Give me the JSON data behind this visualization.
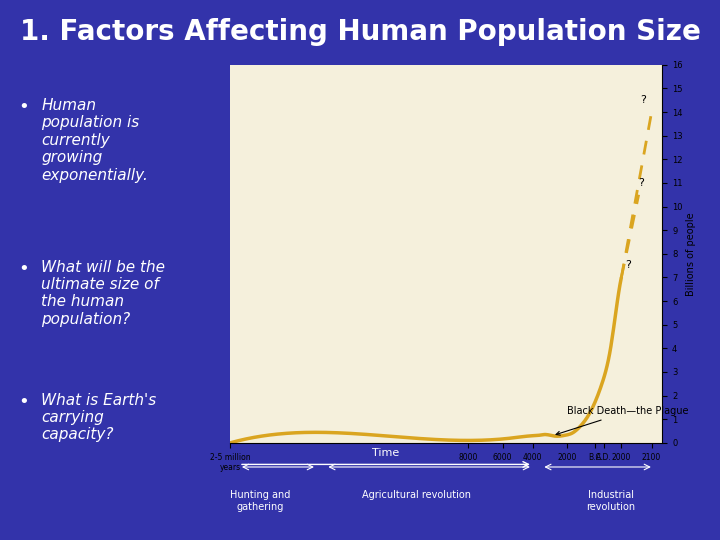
{
  "title": "1. Factors Affecting Human Population Size",
  "title_color": "#FFFFFF",
  "title_fontsize": 20,
  "bg_color": "#3333AA",
  "slide_bg": "#3333AA",
  "chart_bg": "#F5F0DC",
  "bullet_points": [
    "Human\npopulation is\ncurrently\ngrowing\nexponentially.",
    "What will be the\nultimate size of\nthe human\npopulation?",
    "What is Earth's\ncarrying\ncapacity?"
  ],
  "bullet_color": "#FFFFFF",
  "bullet_fontsize": 11,
  "chart_line_color": "#DAA520",
  "chart_dashed_color": "#DAA520",
  "y_labels": [
    "0",
    "1",
    "2",
    "3",
    "4",
    "5",
    "6",
    "7",
    "8",
    "9",
    "10",
    "11",
    "12",
    "13",
    "14",
    "15",
    "16"
  ],
  "y_axis_label": "Billions of people",
  "x_labels": [
    "2-5 million\nyears",
    "8000",
    "6000",
    "4000",
    "2000",
    "B.C.",
    "A.D.",
    "2000",
    "2100"
  ],
  "x_sublabels": [
    "Hunting and\ngathering",
    "Agricultural revolution",
    "Industrial\nrevolution"
  ],
  "annotation_black_death": "Black Death—the Plague",
  "question_marks": [
    "?",
    "?",
    "?"
  ],
  "time_label": "Time"
}
